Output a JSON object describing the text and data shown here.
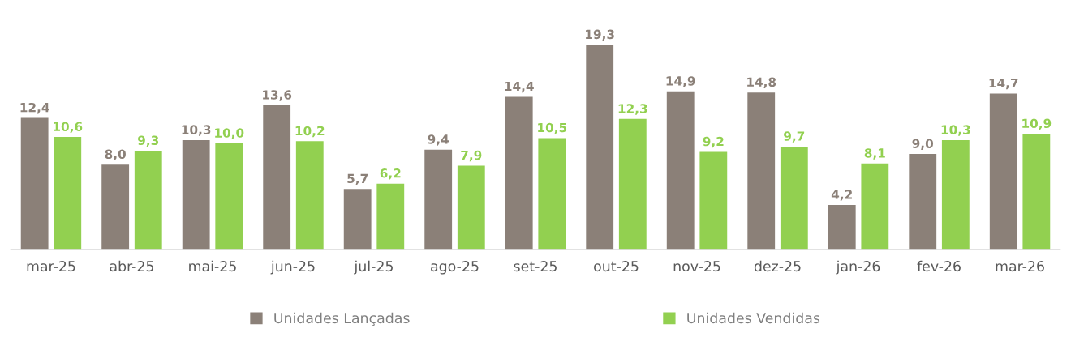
{
  "chart_data": {
    "type": "bar",
    "categories": [
      "mar-25",
      "abr-25",
      "mai-25",
      "jun-25",
      "jul-25",
      "ago-25",
      "set-25",
      "out-25",
      "nov-25",
      "dez-25",
      "jan-26",
      "fev-26",
      "mar-26"
    ],
    "series": [
      {
        "name": "Unidades Lançadas",
        "color": "#8b8078",
        "values": [
          12.4,
          8.0,
          10.3,
          13.6,
          5.7,
          9.4,
          14.4,
          19.3,
          14.9,
          14.8,
          4.2,
          9.0,
          14.7
        ],
        "value_labels": [
          "12,4",
          "8,0",
          "10,3",
          "13,6",
          "5,7",
          "9,4",
          "14,4",
          "19,3",
          "14,9",
          "14,8",
          "4,2",
          "9,0",
          "14,7"
        ]
      },
      {
        "name": "Unidades Vendidas",
        "color": "#92d050",
        "values": [
          10.6,
          9.3,
          10.0,
          10.2,
          6.2,
          7.9,
          10.5,
          12.3,
          9.2,
          9.7,
          8.1,
          10.3,
          10.9
        ],
        "value_labels": [
          "10,6",
          "9,3",
          "10,0",
          "10,2",
          "6,2",
          "7,9",
          "10,5",
          "12,3",
          "9,2",
          "9,7",
          "8,1",
          "10,3",
          "10,9"
        ]
      }
    ],
    "legend": "bottom",
    "grid": false
  }
}
